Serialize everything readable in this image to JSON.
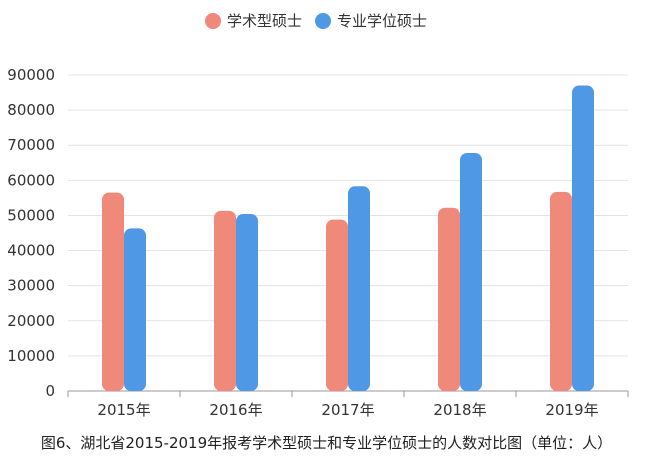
{
  "chart_data": {
    "type": "bar",
    "categories": [
      "2015年",
      "2016年",
      "2017年",
      "2018年",
      "2019年"
    ],
    "series": [
      {
        "name": "学术型硕士",
        "color": "#f0897a",
        "values": [
          56500,
          51300,
          48800,
          52200,
          56700
        ]
      },
      {
        "name": "专业学位硕士",
        "color": "#4f98e6",
        "values": [
          46300,
          50400,
          58300,
          67800,
          87000
        ]
      }
    ],
    "ylim": [
      0,
      90000
    ],
    "yticks": [
      "0",
      "10000",
      "20000",
      "30000",
      "40000",
      "50000",
      "60000",
      "70000",
      "80000",
      "90000"
    ],
    "grid": true,
    "legend": "top-center"
  },
  "caption": "图6、湖北省2015-2019年报考学术型硕士和专业学位硕士的人数对比图（单位：人）"
}
